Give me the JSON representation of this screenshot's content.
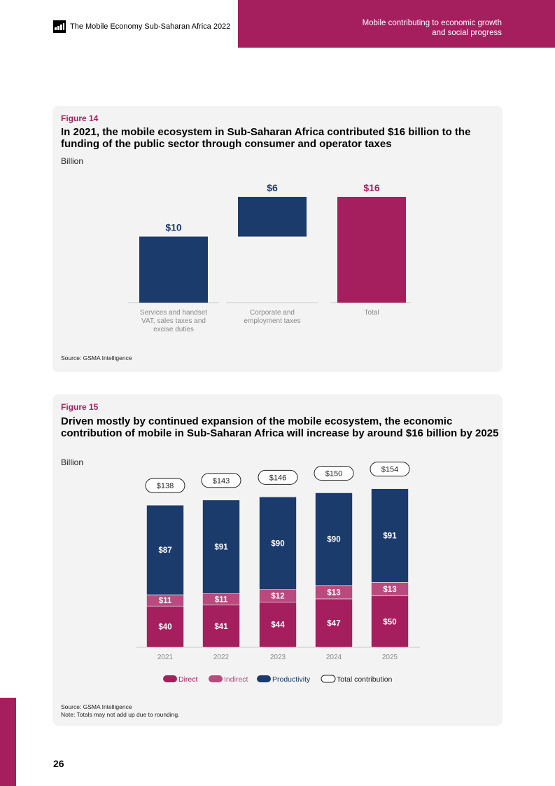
{
  "header": {
    "publication": "The Mobile Economy Sub-Saharan Africa 2022",
    "section_line1": "Mobile contributing to economic growth",
    "section_line2": "and social progress"
  },
  "colors": {
    "magenta": "#a51f5f",
    "navy": "#1c3b6d",
    "pink": "#b94a7e"
  },
  "figure14": {
    "label": "Figure 14",
    "title": "In 2021, the mobile ecosystem in Sub-Saharan Africa contributed $16 billion to the funding of the public sector through consumer and operator taxes",
    "unit": "Billion",
    "source": "Source: GSMA Intelligence"
  },
  "figure15": {
    "label": "Figure 15",
    "title": "Driven mostly by continued expansion of the mobile ecosystem, the economic contribution of mobile in Sub-Saharan Africa will increase by around $16 billion by 2025",
    "unit": "Billion",
    "source": "Source: GSMA Intelligence",
    "note": "Note: Totals may not add up due to rounding."
  },
  "chart_data": [
    {
      "type": "bar",
      "subtype": "waterfall",
      "categories": [
        [
          "Services and handset",
          "VAT, sales taxes and",
          "excise duties"
        ],
        [
          "Corporate and",
          "employment taxes"
        ],
        [
          "Total"
        ]
      ],
      "values": [
        10,
        6,
        16
      ],
      "labels": [
        "$10",
        "$6",
        "$16"
      ],
      "colors": [
        "#1c3b6d",
        "#1c3b6d",
        "#a51f5f"
      ],
      "ylim": [
        0,
        16
      ]
    },
    {
      "type": "bar",
      "subtype": "stacked",
      "categories": [
        "2021",
        "2022",
        "2023",
        "2024",
        "2025"
      ],
      "series": [
        {
          "name": "Direct",
          "color": "#a51f5f",
          "values": [
            40,
            41,
            44,
            47,
            50
          ],
          "labels": [
            "$40",
            "$41",
            "$44",
            "$47",
            "$50"
          ]
        },
        {
          "name": "Indirect",
          "color": "#b94a7e",
          "values": [
            11,
            11,
            12,
            13,
            13
          ],
          "labels": [
            "$11",
            "$11",
            "$12",
            "$13",
            "$13"
          ]
        },
        {
          "name": "Productivity",
          "color": "#1c3b6d",
          "values": [
            87,
            91,
            90,
            90,
            91
          ],
          "labels": [
            "$87",
            "$91",
            "$90",
            "$90",
            "$91"
          ]
        }
      ],
      "totals": [
        138,
        143,
        146,
        150,
        154
      ],
      "total_labels": [
        "$138",
        "$143",
        "$146",
        "$150",
        "$154"
      ],
      "legend": [
        "Direct",
        "Indirect",
        "Productivity",
        "Total contribution"
      ],
      "ylim": [
        0,
        160
      ]
    }
  ],
  "page": {
    "number": "26"
  }
}
